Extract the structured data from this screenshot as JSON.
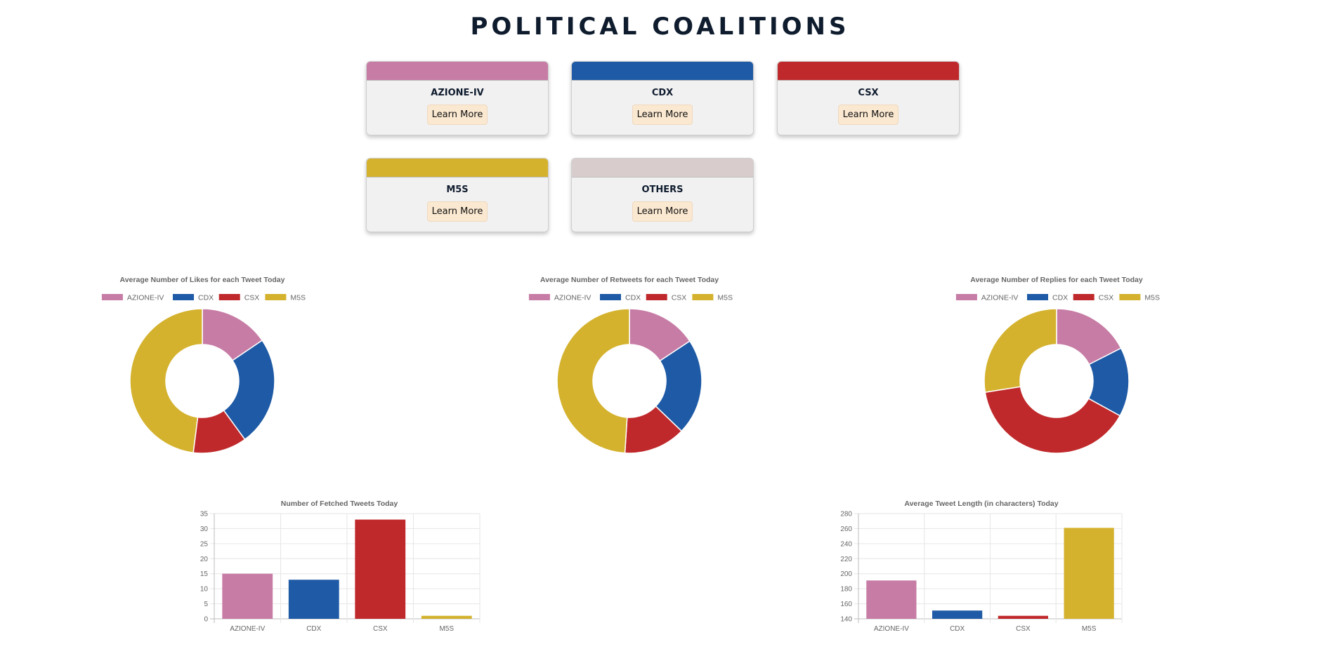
{
  "page": {
    "title": "POLITICAL COALITIONS"
  },
  "cards": [
    {
      "name": "AZIONE-IV",
      "button_label": "Learn More",
      "color": "#c77ca5"
    },
    {
      "name": "CDX",
      "button_label": "Learn More",
      "color": "#1e5aa5"
    },
    {
      "name": "CSX",
      "button_label": "Learn More",
      "color": "#c0292b"
    },
    {
      "name": "M5S",
      "button_label": "Learn More",
      "color": "#d4b22e"
    },
    {
      "name": "OTHERS",
      "button_label": "Learn More",
      "color": "#d9cccc"
    }
  ],
  "chart_data": [
    {
      "type": "doughnut",
      "title": "Average Number of Likes for each Tweet Today",
      "legend_position": "top",
      "categories": [
        "AZIONE-IV",
        "CDX",
        "CSX",
        "M5S"
      ],
      "values": [
        15.5,
        24.5,
        12,
        48
      ],
      "colors": [
        "#c77ca5",
        "#1e5aa5",
        "#c0292b",
        "#d4b22e"
      ]
    },
    {
      "type": "doughnut",
      "title": "Average Number of Retweets for each Tweet Today",
      "legend_position": "top",
      "categories": [
        "AZIONE-IV",
        "CDX",
        "CSX",
        "M5S"
      ],
      "values": [
        15.7,
        21.5,
        13.8,
        49
      ],
      "colors": [
        "#c77ca5",
        "#1e5aa5",
        "#c0292b",
        "#d4b22e"
      ]
    },
    {
      "type": "doughnut",
      "title": "Average Number of Replies for each Tweet Today",
      "legend_position": "top",
      "categories": [
        "AZIONE-IV",
        "CDX",
        "CSX",
        "M5S"
      ],
      "values": [
        17.5,
        15.5,
        39.5,
        27.5
      ],
      "colors": [
        "#c77ca5",
        "#1e5aa5",
        "#c0292b",
        "#d4b22e"
      ]
    },
    {
      "type": "bar",
      "title": "Number of Fetched Tweets Today",
      "categories": [
        "AZIONE-IV",
        "CDX",
        "CSX",
        "M5S"
      ],
      "values": [
        15,
        13,
        33,
        1
      ],
      "colors": [
        "#c77ca5",
        "#1e5aa5",
        "#c0292b",
        "#d4b22e"
      ],
      "ylim": [
        0,
        35
      ],
      "yticks": [
        0,
        5,
        10,
        15,
        20,
        25,
        30,
        35
      ],
      "grid": true,
      "legend": false
    },
    {
      "type": "bar",
      "title": "Average Tweet Length (in characters) Today",
      "categories": [
        "AZIONE-IV",
        "CDX",
        "CSX",
        "M5S"
      ],
      "values": [
        191,
        151,
        144,
        261
      ],
      "colors": [
        "#c77ca5",
        "#1e5aa5",
        "#c0292b",
        "#d4b22e"
      ],
      "ylim": [
        140,
        280
      ],
      "yticks": [
        140,
        160,
        180,
        200,
        220,
        240,
        260,
        280
      ],
      "grid": true,
      "legend": false
    }
  ]
}
